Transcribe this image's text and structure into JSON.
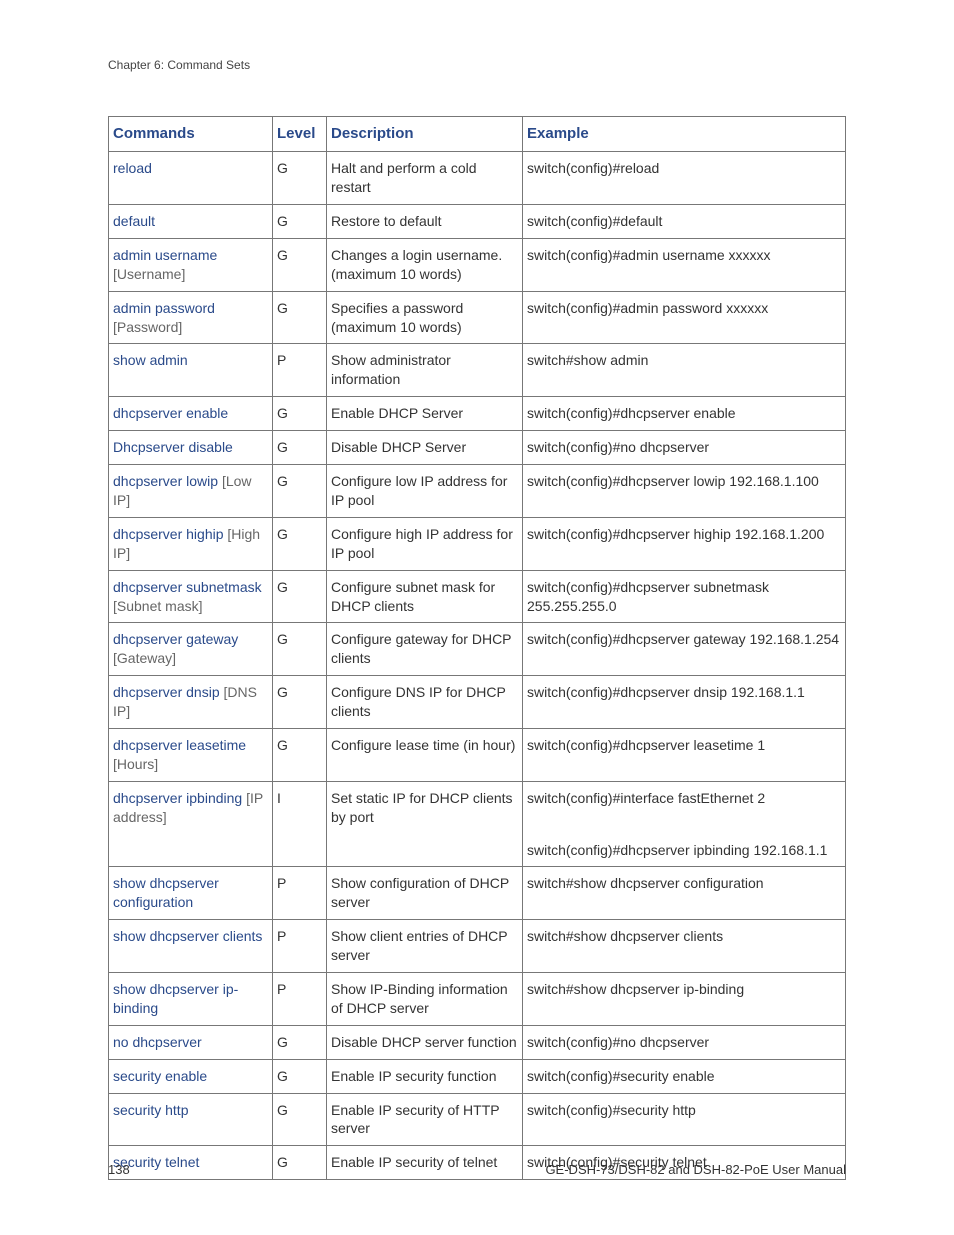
{
  "chapter": "Chapter 6: Command Sets",
  "page_number": "138",
  "manual_title": "GE-DSH-73/DSH-82 and DSH-82-PoE User Manual",
  "colors": {
    "header_text": "#2a4a8a",
    "link_text": "#2a4a8a",
    "param_text": "#666666",
    "body_text": "#333333",
    "border": "#777777",
    "background": "#ffffff"
  },
  "table": {
    "headers": {
      "commands": "Commands",
      "level": "Level",
      "description": "Description",
      "example": "Example"
    },
    "rows": [
      {
        "cmd": "reload",
        "param": "",
        "level": "G",
        "desc": "Halt and perform a cold restart",
        "example": "switch(config)#reload"
      },
      {
        "cmd": "default",
        "param": "",
        "level": "G",
        "desc": "Restore to default",
        "example": "switch(config)#default"
      },
      {
        "cmd": "admin username",
        "param": " [Username]",
        "level": "G",
        "desc": "Changes a login username. (maximum 10 words)",
        "example": "switch(config)#admin username xxxxxx"
      },
      {
        "cmd": "admin password",
        "param": " [Password]",
        "level": "G",
        "desc": "Specifies a password (maximum 10 words)",
        "example": "switch(config)#admin password xxxxxx"
      },
      {
        "cmd": "show admin",
        "param": "",
        "level": "P",
        "desc": "Show administrator information",
        "example": "switch#show admin"
      },
      {
        "cmd": "dhcpserver enable",
        "param": "",
        "level": "G",
        "desc": "Enable DHCP Server",
        "example": "switch(config)#dhcpserver enable"
      },
      {
        "cmd": "Dhcpserver disable",
        "param": "",
        "level": "G",
        "desc": "Disable DHCP Server",
        "example": "switch(config)#no dhcpserver"
      },
      {
        "cmd": "dhcpserver lowip",
        "param": " [Low IP]",
        "level": "G",
        "desc": "Configure low IP address for IP pool",
        "example": "switch(config)#dhcpserver lowip 192.168.1.100"
      },
      {
        "cmd": "dhcpserver highip",
        "param": " [High IP]",
        "level": "G",
        "desc": "Configure high IP address for IP pool",
        "example": "switch(config)#dhcpserver highip 192.168.1.200"
      },
      {
        "cmd": "dhcpserver subnetmask",
        "param": " [Subnet mask]",
        "level": "G",
        "desc": "Configure subnet mask for DHCP clients",
        "example": "switch(config)#dhcpserver subnetmask 255.255.255.0"
      },
      {
        "cmd": "dhcpserver gateway",
        "param": " [Gateway]",
        "level": "G",
        "desc": "Configure gateway for DHCP clients",
        "example": "switch(config)#dhcpserver gateway 192.168.1.254"
      },
      {
        "cmd": "dhcpserver dnsip",
        "param": " [DNS IP]",
        "level": "G",
        "desc": "Configure DNS IP for DHCP clients",
        "example": "switch(config)#dhcpserver dnsip 192.168.1.1"
      },
      {
        "cmd": "dhcpserver leasetime",
        "param": " [Hours]",
        "level": "G",
        "desc": "Configure lease time (in hour)",
        "example": "switch(config)#dhcpserver leasetime 1"
      },
      {
        "cmd": "dhcpserver ipbinding",
        "param": " [IP address]",
        "level": "I",
        "desc": "Set static IP for DHCP clients by port",
        "example": "switch(config)#interface fastEthernet 2",
        "example2": "switch(config)#dhcpserver ipbinding 192.168.1.1"
      },
      {
        "cmd": "show dhcpserver configuration",
        "param": "",
        "level": "P",
        "desc": "Show configuration of DHCP server",
        "example": "switch#show dhcpserver configuration"
      },
      {
        "cmd": "show dhcpserver clients",
        "param": "",
        "level": "P",
        "desc": "Show client entries of DHCP server",
        "example": "switch#show dhcpserver clients"
      },
      {
        "cmd": "show dhcpserver ip-binding",
        "param": "",
        "level": "P",
        "desc": "Show IP-Binding information of DHCP server",
        "example": "switch#show dhcpserver ip-binding"
      },
      {
        "cmd": "no dhcpserver",
        "param": "",
        "level": "G",
        "desc": "Disable DHCP server function",
        "example": "switch(config)#no dhcpserver"
      },
      {
        "cmd": "security enable",
        "param": "",
        "level": "G",
        "desc": "Enable IP security function",
        "example": "switch(config)#security enable"
      },
      {
        "cmd": "security http",
        "param": "",
        "level": "G",
        "desc": "Enable IP security of HTTP server",
        "example": "switch(config)#security http"
      },
      {
        "cmd": "security telnet",
        "param": "",
        "level": "G",
        "desc": "Enable IP security of telnet",
        "example": "switch(config)#security telnet"
      }
    ]
  }
}
